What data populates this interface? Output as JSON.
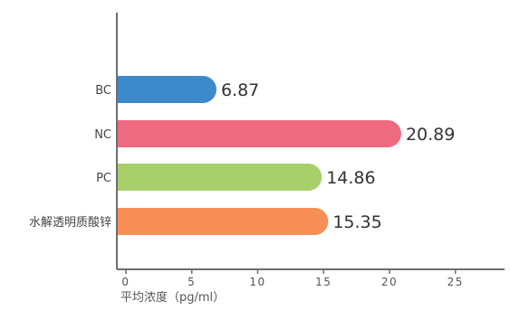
{
  "chart_data": {
    "type": "bar",
    "orientation": "horizontal",
    "categories": [
      "BC",
      "NC",
      "PC",
      "水解透明质酸锌"
    ],
    "values": [
      6.87,
      20.89,
      14.86,
      15.35
    ],
    "value_labels": [
      "6.87",
      "20.89",
      "14.86",
      "15.35"
    ],
    "colors": [
      "#3d89c9",
      "#ee6b7f",
      "#a7cf6b",
      "#f78f56"
    ],
    "xlabel": "平均浓度（pg/ml）",
    "ylabel": "",
    "xlim": [
      0,
      25
    ],
    "xticks": [
      0,
      5,
      10,
      15,
      20,
      25
    ],
    "xtick_labels": [
      "0",
      "5",
      "10",
      "15",
      "20",
      "25"
    ],
    "grid": false,
    "legend": "none"
  }
}
